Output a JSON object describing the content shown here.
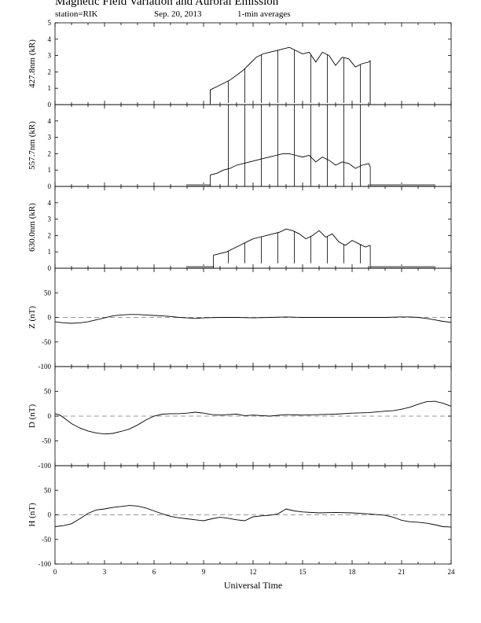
{
  "header": {
    "title": "Magnetic Field Variation and Auroral Emission",
    "station": "station=RIK",
    "date": "Sep. 20, 2013",
    "averaging": "1-min averages"
  },
  "colors": {
    "line": "#000000",
    "baseline": "#9a9a9a",
    "zero": "#777777"
  },
  "chart_data": [
    {
      "type": "line",
      "id": "p4278",
      "ylabel": "427.8nm (kR)",
      "ylim": [
        0,
        5
      ],
      "yticks": [
        0,
        1,
        2,
        3,
        4,
        5
      ],
      "xlim": [
        0,
        24
      ],
      "zero_line": false,
      "valid_range": [
        9.4,
        19.1
      ],
      "series": [
        {
          "x": [
            9.4,
            9.8,
            10.2,
            10.6,
            11.0,
            11.4,
            11.8,
            12.2,
            12.6,
            13.0,
            13.4,
            13.8,
            14.2,
            14.6,
            15.0,
            15.4,
            15.8,
            16.2,
            16.6,
            17.0,
            17.4,
            17.8,
            18.2,
            18.6,
            19.0,
            19.1
          ],
          "y": [
            0.9,
            1.1,
            1.3,
            1.5,
            1.8,
            2.1,
            2.5,
            2.9,
            3.1,
            3.2,
            3.3,
            3.4,
            3.5,
            3.3,
            3.1,
            3.2,
            2.6,
            3.2,
            3.0,
            2.4,
            2.9,
            2.8,
            2.3,
            2.5,
            2.6,
            2.7
          ]
        }
      ],
      "dips_x": [
        9.4,
        10.5,
        11.5,
        12.5,
        13.5,
        14.5,
        15.5,
        16.5,
        17.5,
        18.5,
        19.1
      ],
      "dip_y": 0.1
    },
    {
      "type": "line",
      "id": "p5577",
      "ylabel": "557.7nm (kR)",
      "ylim": [
        0,
        5
      ],
      "yticks": [
        0,
        1,
        2,
        3,
        4
      ],
      "xlim": [
        0,
        24
      ],
      "zero_line": false,
      "valid_range": [
        9.4,
        19.1
      ],
      "baseline_segments": [
        [
          8.0,
          9.4
        ],
        [
          19.1,
          23.0
        ]
      ],
      "series": [
        {
          "x": [
            9.4,
            9.8,
            10.2,
            10.6,
            11.0,
            11.4,
            11.8,
            12.2,
            12.6,
            13.0,
            13.4,
            13.8,
            14.2,
            14.6,
            15.0,
            15.4,
            15.8,
            16.2,
            16.6,
            17.0,
            17.4,
            17.8,
            18.2,
            18.6,
            19.0,
            19.1
          ],
          "y": [
            0.7,
            0.8,
            1.0,
            1.1,
            1.3,
            1.4,
            1.5,
            1.6,
            1.7,
            1.8,
            1.9,
            2.0,
            2.0,
            1.9,
            1.8,
            1.9,
            1.5,
            1.8,
            1.6,
            1.3,
            1.5,
            1.4,
            1.1,
            1.3,
            1.4,
            1.2
          ]
        }
      ],
      "spikes_x": [
        10.5,
        11.5,
        12.5,
        13.5,
        14.5,
        15.5,
        16.5,
        17.5,
        18.5
      ],
      "spike_y": 5.0
    },
    {
      "type": "line",
      "id": "p6300",
      "ylabel": "630.0nm (kR)",
      "ylim": [
        0,
        5
      ],
      "yticks": [
        0,
        1,
        2,
        3,
        4
      ],
      "xlim": [
        0,
        24
      ],
      "zero_line": false,
      "valid_range": [
        9.6,
        19.1
      ],
      "baseline_segments": [
        [
          8.0,
          9.6
        ],
        [
          19.1,
          23.0
        ]
      ],
      "series": [
        {
          "x": [
            9.6,
            10.0,
            10.4,
            10.8,
            11.2,
            11.6,
            12.0,
            12.4,
            12.8,
            13.2,
            13.6,
            14.0,
            14.4,
            14.8,
            15.2,
            15.6,
            16.0,
            16.4,
            16.8,
            17.2,
            17.6,
            18.0,
            18.4,
            18.8,
            19.1
          ],
          "y": [
            0.8,
            0.9,
            1.0,
            1.2,
            1.4,
            1.6,
            1.8,
            1.9,
            2.0,
            2.1,
            2.2,
            2.4,
            2.3,
            2.1,
            1.8,
            2.0,
            2.3,
            1.9,
            2.1,
            1.6,
            1.4,
            1.7,
            1.5,
            1.3,
            1.4
          ]
        }
      ],
      "dips_x": [
        10.5,
        11.5,
        12.5,
        13.5,
        14.5,
        15.5,
        16.5,
        17.5,
        18.5
      ],
      "dip_y": 0.3
    },
    {
      "type": "line",
      "id": "pZ",
      "ylabel": "Z (nT)",
      "ylim": [
        -100,
        100
      ],
      "yticks": [
        -100,
        -50,
        0,
        50
      ],
      "xlim": [
        0,
        24
      ],
      "zero_line": true,
      "series": [
        {
          "x": [
            0,
            0.5,
            1,
            1.5,
            2,
            2.5,
            3,
            3.5,
            4,
            4.5,
            5,
            5.5,
            6,
            6.5,
            7,
            7.5,
            8,
            8.5,
            9,
            10,
            11,
            12,
            13,
            14,
            15,
            16,
            17,
            18,
            19,
            20,
            21,
            21.5,
            22,
            22.5,
            23,
            23.5,
            24
          ],
          "y": [
            -9,
            -11,
            -12,
            -11,
            -9,
            -5,
            -1,
            3,
            5,
            6,
            6,
            5,
            4,
            3,
            2,
            0,
            -1,
            -2,
            -1,
            0,
            0,
            -1,
            0,
            1,
            0,
            0,
            0,
            0,
            0,
            0,
            1,
            1,
            0,
            -2,
            -5,
            -8,
            -10
          ]
        }
      ]
    },
    {
      "type": "line",
      "id": "pD",
      "ylabel": "D (nT)",
      "ylim": [
        -100,
        100
      ],
      "yticks": [
        -100,
        -50,
        0,
        50
      ],
      "xlim": [
        0,
        24
      ],
      "zero_line": true,
      "series": [
        {
          "x": [
            0,
            0.3,
            0.6,
            1,
            1.5,
            2,
            2.5,
            3,
            3.5,
            4,
            4.5,
            5,
            5.5,
            6,
            6.5,
            7,
            7.5,
            8,
            8.5,
            9,
            9.5,
            10,
            11,
            11.5,
            12,
            13,
            14,
            15,
            16,
            17,
            18,
            19,
            20,
            20.5,
            21,
            21.5,
            22,
            22.5,
            23,
            23.5,
            24
          ],
          "y": [
            5,
            2,
            -5,
            -15,
            -24,
            -30,
            -34,
            -36,
            -35,
            -31,
            -26,
            -18,
            -8,
            0,
            4,
            5,
            5,
            6,
            8,
            6,
            3,
            2,
            4,
            1,
            2,
            0,
            3,
            2,
            3,
            4,
            6,
            7,
            10,
            11,
            14,
            18,
            24,
            29,
            30,
            26,
            20
          ]
        }
      ]
    },
    {
      "type": "line",
      "id": "pH",
      "ylabel": "H (nT)",
      "ylim": [
        -100,
        100
      ],
      "yticks": [
        -100,
        -50,
        0,
        50
      ],
      "xlim": [
        0,
        24
      ],
      "zero_line": true,
      "series": [
        {
          "x": [
            0,
            0.5,
            1,
            1.5,
            2,
            2.5,
            3,
            3.5,
            4,
            4.5,
            5,
            5.5,
            6,
            6.5,
            7,
            7.5,
            8,
            8.5,
            9,
            9.5,
            10,
            10.5,
            11,
            11.5,
            12,
            12.5,
            13,
            13.5,
            14,
            14.5,
            15,
            16,
            17,
            18,
            19,
            20,
            20.5,
            21,
            21.5,
            22,
            22.5,
            23,
            23.5,
            24
          ],
          "y": [
            -24,
            -22,
            -18,
            -8,
            3,
            10,
            12,
            15,
            17,
            19,
            18,
            14,
            8,
            2,
            -3,
            -6,
            -8,
            -10,
            -12,
            -8,
            -5,
            -7,
            -10,
            -12,
            -4,
            -2,
            -1,
            2,
            12,
            8,
            6,
            4,
            5,
            4,
            2,
            -1,
            -5,
            -11,
            -14,
            -15,
            -17,
            -20,
            -24,
            -25
          ]
        }
      ]
    }
  ],
  "x_axis": {
    "label": "Universal Time",
    "ticks": [
      "0",
      "3",
      "6",
      "9",
      "12",
      "15",
      "18",
      "21",
      "24"
    ]
  }
}
